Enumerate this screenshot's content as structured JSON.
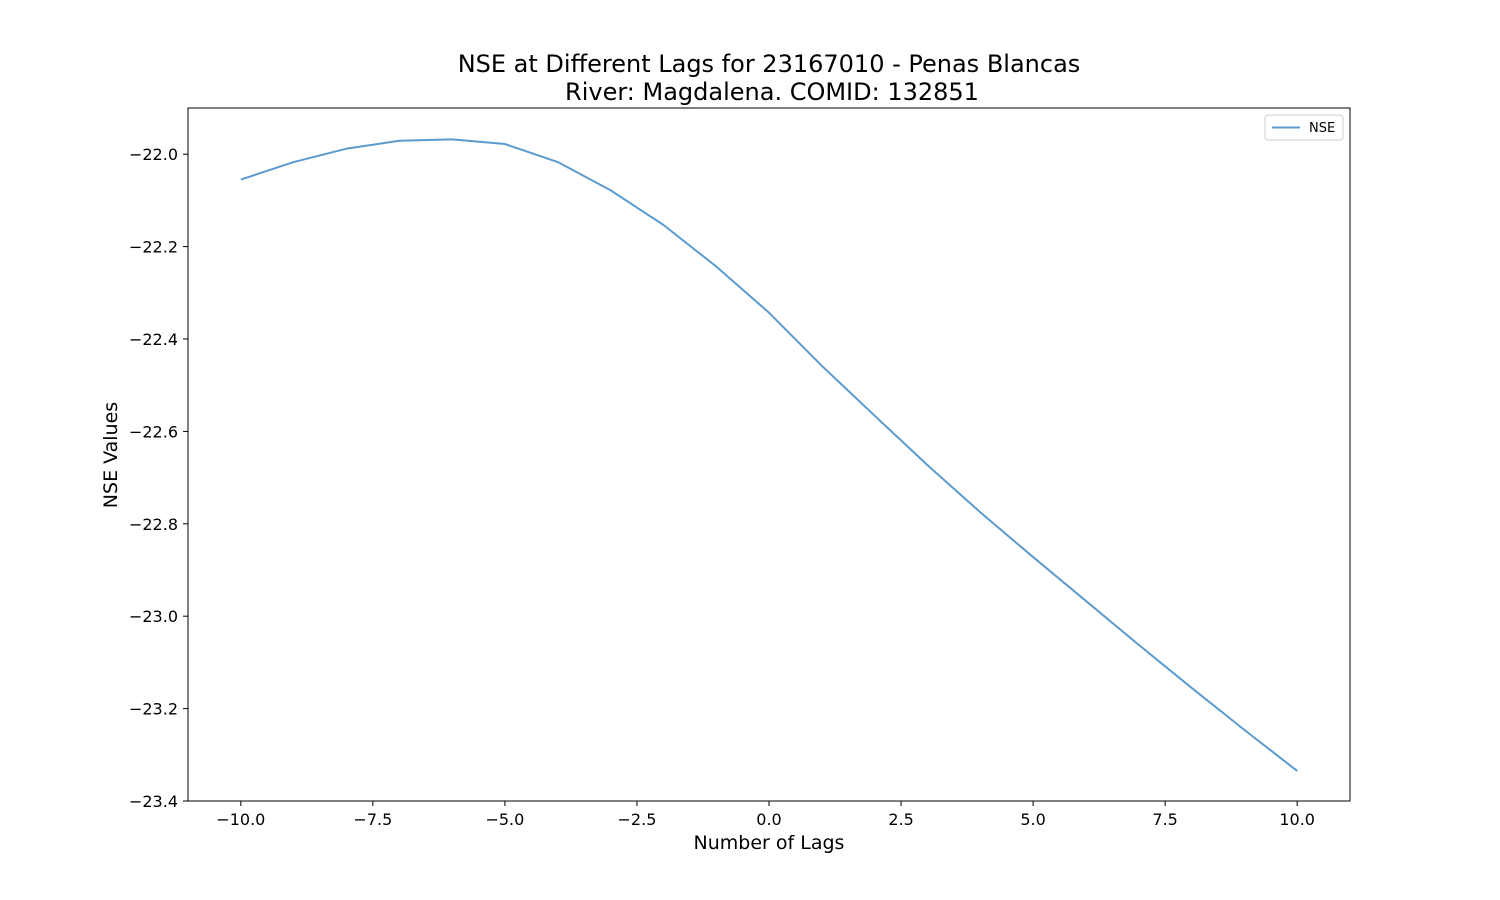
{
  "chart_data": {
    "type": "line",
    "title": "NSE at Different Lags for 23167010 - Penas Blancas",
    "subtitle": "River: Magdalena. COMID: 132851",
    "xlabel": "Number of Lags",
    "ylabel": "NSE Values",
    "xlim": [
      -11,
      11
    ],
    "ylim": [
      -23.4,
      -21.9
    ],
    "xticks": [
      -10.0,
      -7.5,
      -5.0,
      -2.5,
      0.0,
      2.5,
      5.0,
      7.5,
      10.0
    ],
    "xtick_labels": [
      "−10.0",
      "−7.5",
      "−5.0",
      "−2.5",
      "0.0",
      "2.5",
      "5.0",
      "7.5",
      "10.0"
    ],
    "yticks": [
      -22.0,
      -22.2,
      -22.4,
      -22.6,
      -22.8,
      -23.0,
      -23.2,
      -23.4
    ],
    "ytick_labels": [
      "−22.0",
      "−22.2",
      "−22.4",
      "−22.6",
      "−22.8",
      "−23.0",
      "−23.2",
      "−23.4"
    ],
    "grid": false,
    "legend": "top-right",
    "series": [
      {
        "name": "NSE",
        "color": "#5b9bd0",
        "x": [
          -10,
          -9,
          -8,
          -7,
          -6,
          -5,
          -4,
          -3,
          -2,
          -1,
          0,
          1,
          2,
          3,
          4,
          5,
          6,
          7,
          8,
          9,
          10
        ],
        "y": [
          -22.055,
          -22.017,
          -21.988,
          -21.971,
          -21.968,
          -21.978,
          -22.017,
          -22.078,
          -22.153,
          -22.243,
          -22.343,
          -22.458,
          -22.566,
          -22.673,
          -22.775,
          -22.872,
          -22.967,
          -23.062,
          -23.155,
          -23.246,
          -23.335
        ]
      }
    ]
  }
}
